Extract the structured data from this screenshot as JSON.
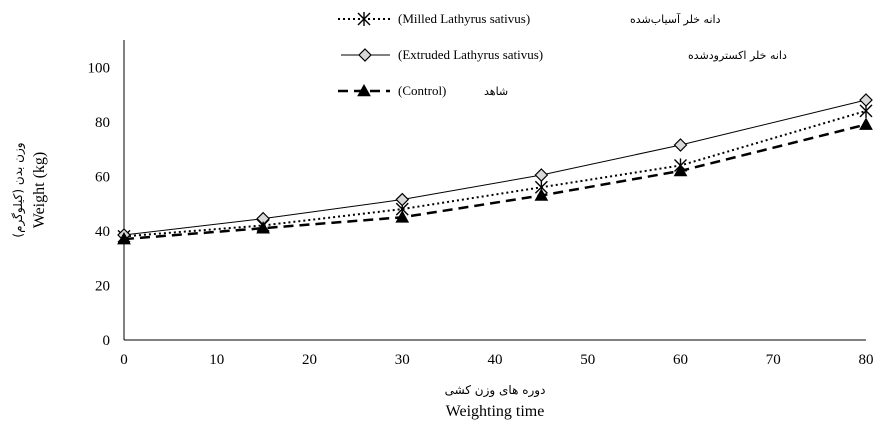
{
  "chart_data": {
    "type": "line",
    "x": [
      0,
      15,
      30,
      45,
      60,
      80
    ],
    "xlim": [
      0,
      80
    ],
    "xticks": [
      0,
      10,
      20,
      30,
      40,
      50,
      60,
      70,
      80
    ],
    "ylim": [
      0,
      110
    ],
    "yticks": [
      0,
      20,
      40,
      60,
      80,
      100
    ],
    "xlabel_fa": "دوره های وزن کشی",
    "xlabel": "Weighting time",
    "ylabel_fa": "وزن بدن (کیلوگرم)",
    "ylabel": "Weight (kg)",
    "grid": false,
    "legend_position": "top-center",
    "series": [
      {
        "name_fa": "دانه خلر آسیاب‌شده",
        "name": "(Milled Lathyrus sativus)",
        "values": [
          38,
          42,
          48,
          56,
          64,
          84
        ],
        "line_style": "dotted",
        "marker": "asterisk"
      },
      {
        "name_fa": "دانه خلر اکسترودشده",
        "name": "(Extruded Lathyrus sativus)",
        "values": [
          38.5,
          44.5,
          51.5,
          60.5,
          71.5,
          88
        ],
        "line_style": "solid",
        "marker": "diamond"
      },
      {
        "name_fa": "شاهد",
        "name": "(Control)",
        "values": [
          37,
          41,
          45,
          53,
          62,
          79
        ],
        "line_style": "dashed",
        "marker": "triangle"
      }
    ]
  }
}
